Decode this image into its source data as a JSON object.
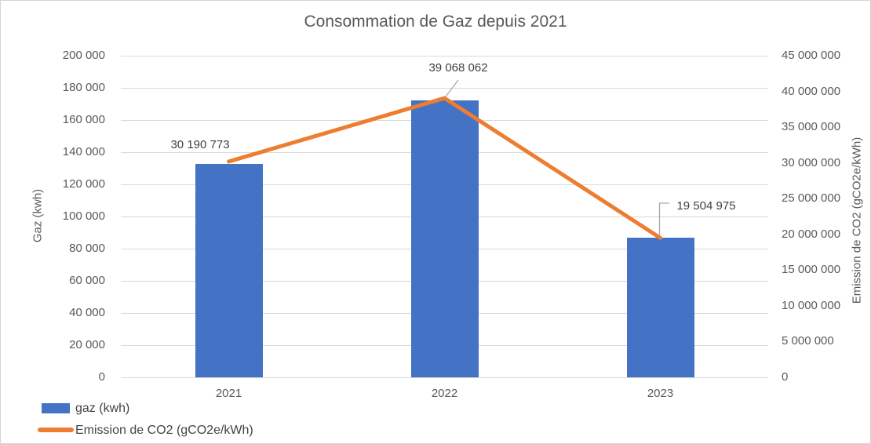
{
  "chart_data": {
    "type": "combo",
    "title": "Consommation de Gaz depuis 2021",
    "categories": [
      "2021",
      "2022",
      "2023"
    ],
    "series": [
      {
        "name": "gaz (kwh)",
        "type": "bar",
        "axis": "left",
        "color": "#4472C4",
        "values": [
          132700,
          172200,
          86800
        ]
      },
      {
        "name": "Emission de CO2 (gCO2e/kWh)",
        "type": "line",
        "axis": "right",
        "color": "#ED7D31",
        "values": [
          30190773,
          39068062,
          19504975
        ],
        "data_labels": [
          "30 190 773",
          "39 068 062",
          "19 504 975"
        ]
      }
    ],
    "axes": {
      "left": {
        "title": "Gaz (kwh)",
        "min": 0,
        "max": 200000,
        "tick_values": [
          0,
          20000,
          40000,
          60000,
          80000,
          100000,
          120000,
          140000,
          160000,
          180000,
          200000
        ],
        "tick_labels": [
          "0",
          "20 000",
          "40 000",
          "60 000",
          "80 000",
          "100 000",
          "120 000",
          "140 000",
          "160 000",
          "180 000",
          "200 000"
        ]
      },
      "right": {
        "title": "Emission de CO2 (gCO2e/kWh)",
        "min": 0,
        "max": 45000000,
        "tick_values": [
          0,
          5000000,
          10000000,
          15000000,
          20000000,
          25000000,
          30000000,
          35000000,
          40000000,
          45000000
        ],
        "tick_labels": [
          "0",
          "5 000 000",
          "10 000 000",
          "15 000 000",
          "20 000 000",
          "25 000 000",
          "30 000 000",
          "35 000 000",
          "40 000 000",
          "45 000 000"
        ]
      }
    },
    "grid": "horizontal",
    "legend": {
      "position": "bottom-left",
      "items": [
        {
          "label": "gaz (kwh)",
          "marker": "rect",
          "color": "#4472C4"
        },
        {
          "label": "Emission de CO2 (gCO2e/kWh)",
          "marker": "line",
          "color": "#ED7D31"
        }
      ]
    },
    "colors": {
      "bar": "#4472C4",
      "line": "#ED7D31",
      "text": "#595959",
      "data_label": "#404040",
      "gridline": "#D9D9D9",
      "leader_line": "#A6A6A6",
      "background": "#FFFFFF"
    }
  }
}
